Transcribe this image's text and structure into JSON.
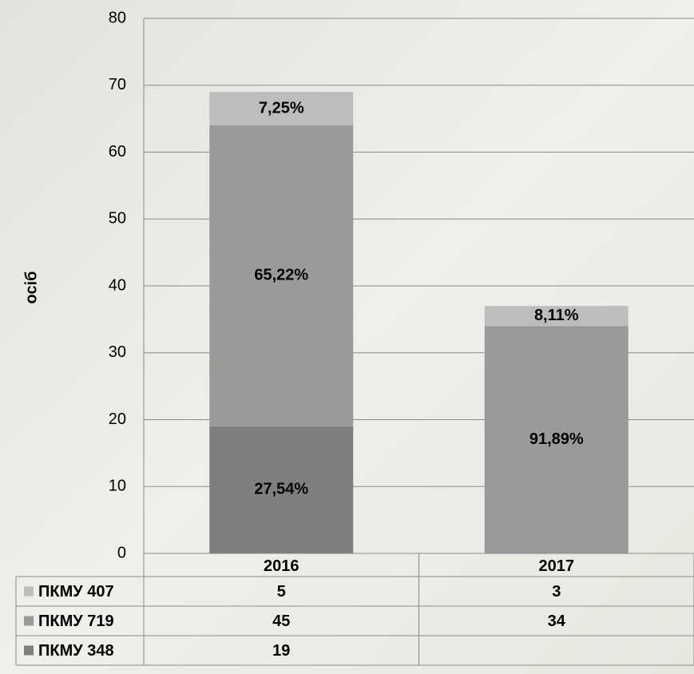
{
  "chart_data": {
    "type": "stacked_bar",
    "y_label": "осіб",
    "categories": [
      "2016",
      "2017"
    ],
    "series": [
      {
        "name": "ПКМУ 348",
        "color": "#7f7f7f",
        "values": [
          19,
          null
        ],
        "shares": [
          27.54,
          null
        ],
        "share_labels": [
          "27,54%",
          null
        ]
      },
      {
        "name": "ПКМУ 719",
        "color": "#9a9a9a",
        "values": [
          45,
          34
        ],
        "shares": [
          65.22,
          91.89
        ],
        "share_labels": [
          "65,22%",
          "91,89%"
        ]
      },
      {
        "name": "ПКМУ 407",
        "color": "#bdbdbd",
        "values": [
          5,
          3
        ],
        "shares": [
          7.25,
          8.11
        ],
        "share_labels": [
          "7,25%",
          "8,11%"
        ]
      }
    ],
    "ylim": [
      0,
      80
    ],
    "yticks": [
      0,
      10,
      20,
      30,
      40,
      50,
      60,
      70,
      80
    ],
    "grid": true
  }
}
